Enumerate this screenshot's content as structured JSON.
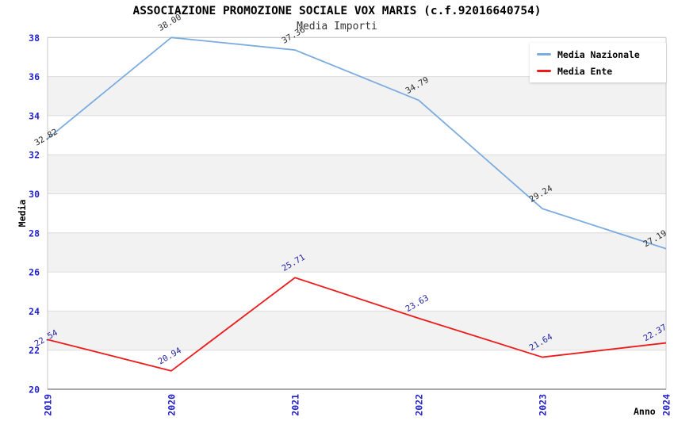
{
  "title": "ASSOCIAZIONE PROMOZIONE SOCIALE VOX MARIS (c.f.92016640754)",
  "subtitle": "Media Importi",
  "chart_data": {
    "type": "line",
    "x": [
      "2019",
      "2020",
      "2021",
      "2022",
      "2023",
      "2024"
    ],
    "xlabel": "Anno",
    "ylabel": "Media",
    "ylim": [
      20,
      38
    ],
    "yticks": [
      20,
      22,
      24,
      26,
      28,
      30,
      32,
      34,
      36,
      38
    ],
    "grid": "horizontal-bands",
    "legend_position": "top-right",
    "series": [
      {
        "name": "Media Nazionale",
        "color": "#7CACDF",
        "label_color": "#2b2b2b",
        "values": [
          32.82,
          38.0,
          37.36,
          34.79,
          29.24,
          27.19
        ]
      },
      {
        "name": "Media Ente",
        "color": "#ED1C1C",
        "label_color": "#2525a5",
        "values": [
          22.54,
          20.94,
          25.71,
          23.63,
          21.64,
          22.37
        ]
      }
    ],
    "colors": {
      "tick_label": "#2222CC",
      "band": "#f2f2f2",
      "grid": "#dcdcdc",
      "border": "#c9c9c9",
      "axis": "#8f8f8f"
    }
  }
}
